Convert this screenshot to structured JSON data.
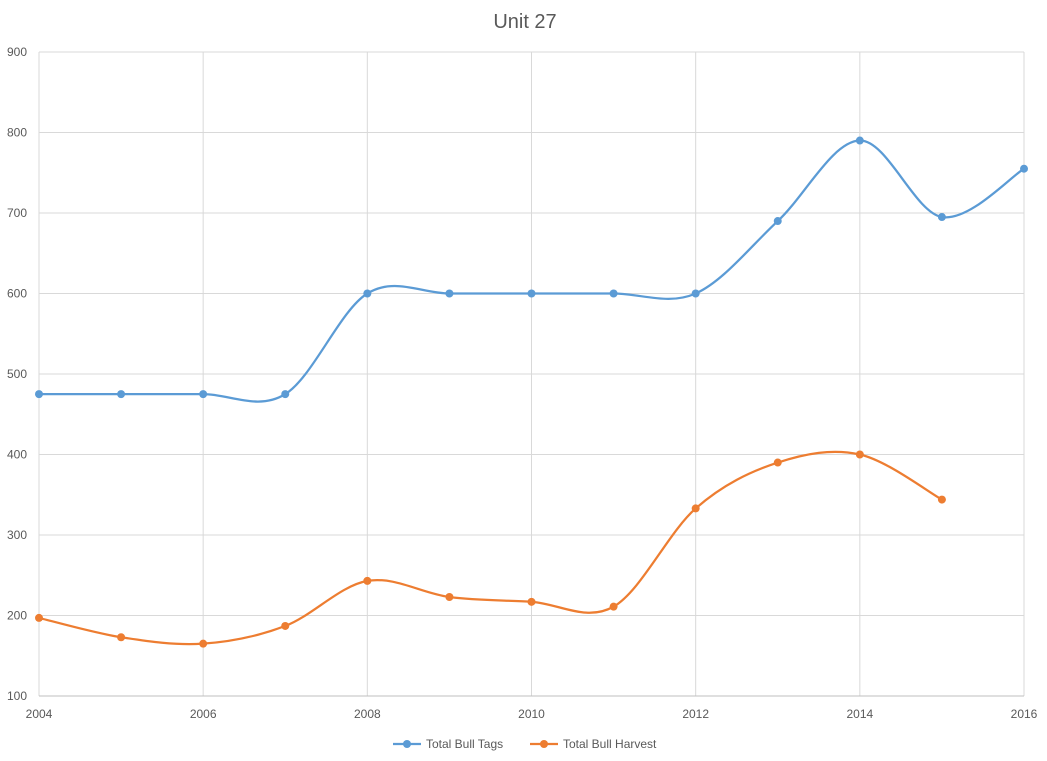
{
  "chart_data": {
    "type": "line",
    "title": "Unit 27",
    "xlabel": "",
    "ylabel": "",
    "smooth": true,
    "grid": true,
    "legend_position": "bottom",
    "xlim": [
      2004,
      2016
    ],
    "ylim": [
      100,
      900
    ],
    "x_ticks": [
      2004,
      2006,
      2008,
      2010,
      2012,
      2014,
      2016
    ],
    "y_ticks": [
      100,
      200,
      300,
      400,
      500,
      600,
      700,
      800,
      900
    ],
    "series": [
      {
        "name": "Total Bull Tags",
        "color": "#5B9BD5",
        "x": [
          2004,
          2005,
          2006,
          2007,
          2008,
          2009,
          2010,
          2011,
          2012,
          2013,
          2014,
          2015,
          2016
        ],
        "y": [
          475,
          475,
          475,
          475,
          600,
          600,
          600,
          600,
          600,
          690,
          790,
          695,
          755
        ]
      },
      {
        "name": "Total Bull Harvest",
        "color": "#ED7D31",
        "x": [
          2004,
          2005,
          2006,
          2007,
          2008,
          2009,
          2010,
          2011,
          2012,
          2013,
          2014,
          2015
        ],
        "y": [
          197,
          173,
          165,
          187,
          243,
          223,
          217,
          211,
          333,
          390,
          400,
          344
        ]
      }
    ]
  }
}
